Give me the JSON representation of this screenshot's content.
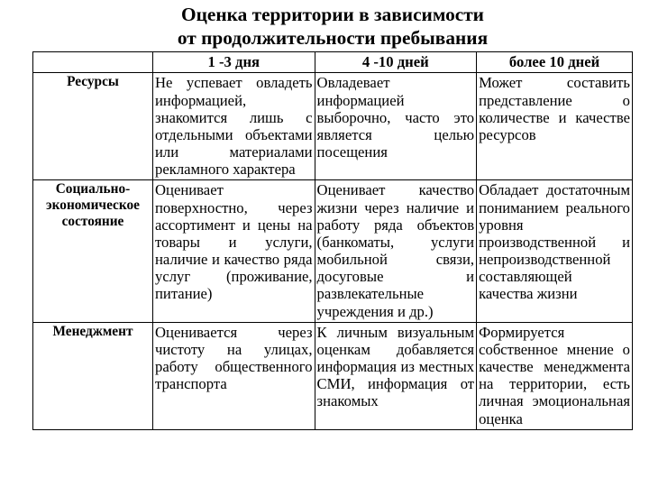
{
  "layout": {
    "title_fontsize_pt": 16,
    "cell_fontsize_pt": 12.5,
    "header_fontsize_pt": 12.5,
    "rowheader_fontsize_pt": 11.5,
    "background_color": "#ffffff",
    "text_color": "#000000",
    "border_color": "#000000",
    "font_family": "Times New Roman",
    "column_widths_pct": [
      20,
      27,
      27,
      26
    ]
  },
  "title_line1": "Оценка территории в зависимости",
  "title_line2": "от продолжительности пребывания",
  "table": {
    "type": "table",
    "columns": [
      "",
      "1 -3 дня",
      "4 -10 дней",
      "более 10 дней"
    ],
    "rows": [
      {
        "header": "Ресурсы",
        "cells": [
          "Не успевает овладеть информацией, знакомится лишь с отдельными объектами или материалами рекламного характера",
          "Овладевает информацией выборочно, часто это является целью посещения",
          "Может составить представление о количестве и качестве ресурсов"
        ]
      },
      {
        "header": "Социально-экономическое состояние",
        "cells": [
          "Оценивает поверхностно, через ассортимент и цены на товары и услуги, наличие и качество ряда услуг (проживание, питание)",
          "Оценивает качество жизни через наличие и работу ряда объектов (банкоматы, услуги мобильной связи, досуговые и развлекательные учреждения и др.)",
          "Обладает достаточным пониманием реального уровня производственной и непроизводственной составляющей качества жизни"
        ]
      },
      {
        "header": "Менеджмент",
        "cells": [
          "Оценивается через чистоту на улицах, работу общественного транспорта",
          "К личным визуальным оценкам добавляется информация из местных СМИ, информация от знакомых",
          "Формируется собственное мнение о качестве менеджмента на территории, есть личная эмоциональная оценка"
        ]
      }
    ]
  }
}
